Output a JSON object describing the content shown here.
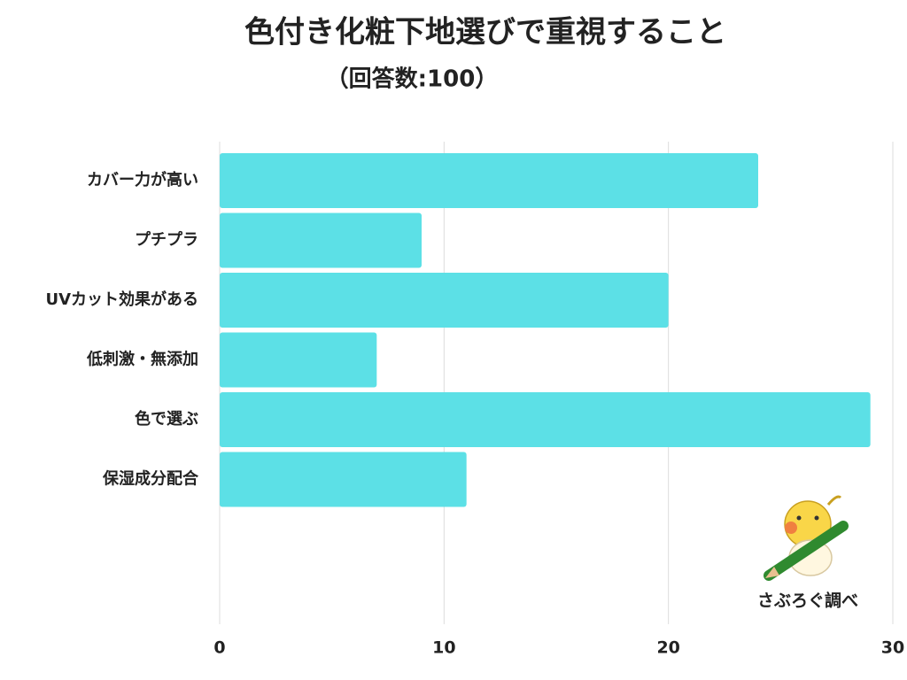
{
  "chart_data": {
    "type": "bar",
    "orientation": "horizontal",
    "title": "色付き化粧下地選びで重視すること",
    "subtitle": "（回答数:100）",
    "categories": [
      "カバー力が高い",
      "プチプラ",
      "UVカット効果がある",
      "低刺激・無添加",
      "色で選ぶ",
      "保湿成分配合"
    ],
    "values": [
      24,
      9,
      20,
      7,
      29,
      11
    ],
    "color": "#5ce0e6",
    "xlim": [
      0,
      30
    ],
    "xticks": [
      0,
      10,
      20,
      30
    ],
    "grid": true,
    "source": "さぶろぐ調べ"
  }
}
